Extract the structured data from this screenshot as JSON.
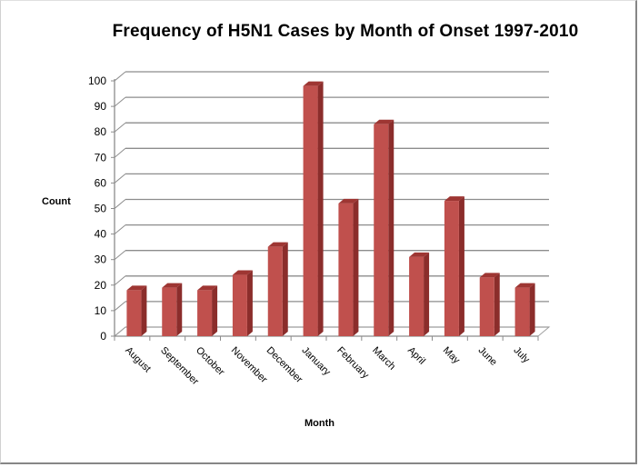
{
  "chart_data": {
    "type": "bar",
    "style": "3d-column",
    "title": "Frequency of H5N1 Cases by Month  of Onset 1997-2010",
    "xlabel": "Month",
    "ylabel": "Count",
    "categories": [
      "August",
      "September",
      "October",
      "November",
      "December",
      "January",
      "February",
      "March",
      "April",
      "May",
      "June",
      "July"
    ],
    "values": [
      18,
      19,
      18,
      24,
      35,
      98,
      52,
      83,
      31,
      53,
      23,
      19
    ],
    "ylim": [
      0,
      100
    ],
    "yticks": [
      0,
      10,
      20,
      30,
      40,
      50,
      60,
      70,
      80,
      90,
      100
    ],
    "grid": true,
    "legend": null,
    "bar_color": "#c0504d",
    "bar_side_color": "#8b2d2b",
    "bar_top_color": "#9e3633"
  }
}
